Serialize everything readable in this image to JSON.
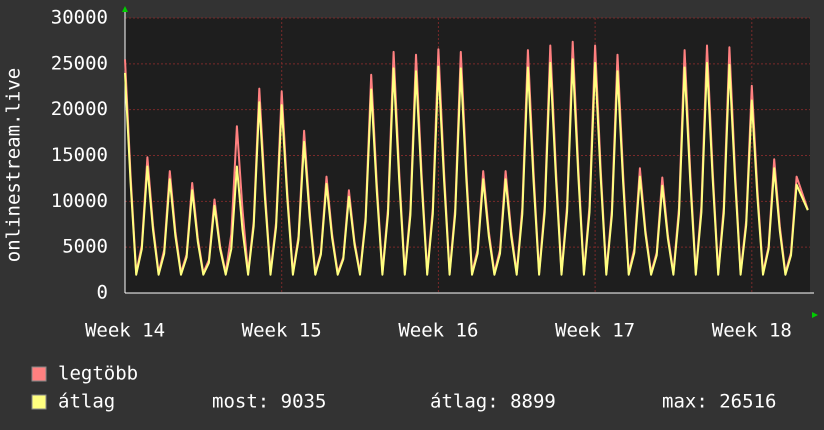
{
  "chart_data": {
    "type": "line",
    "y_label": "onlinestream.live",
    "x": [
      0,
      0.25,
      0.5,
      0.75,
      1,
      1.25,
      1.5,
      1.75,
      2,
      2.25,
      2.5,
      2.75,
      3,
      3.25,
      3.5,
      3.75,
      4,
      4.25,
      4.5,
      4.75,
      5,
      5.25,
      5.5,
      5.75,
      6,
      6.25,
      6.5,
      6.75,
      7,
      7.25,
      7.5,
      7.75,
      8,
      8.25,
      8.5,
      8.75,
      9,
      9.25,
      9.5,
      9.75,
      10,
      10.25,
      10.5,
      10.75,
      11,
      11.25,
      11.5,
      11.75,
      12,
      12.25,
      12.5,
      12.75,
      13,
      13.25,
      13.5,
      13.75,
      14,
      14.25,
      14.5,
      14.75,
      15,
      15.25,
      15.5,
      15.75,
      16,
      16.25,
      16.5,
      16.75,
      17,
      17.25,
      17.5,
      17.75,
      18,
      18.25,
      18.5,
      18.75,
      19,
      19.25,
      19.5,
      19.75,
      20,
      20.25,
      20.5,
      20.75,
      21,
      21.25,
      21.5,
      21.75,
      22,
      22.25,
      22.5,
      22.75,
      23,
      23.25,
      23.5,
      23.75,
      24,
      24.25,
      24.5,
      24.75,
      25,
      25.25,
      25.5,
      25.75,
      26,
      26.25,
      26.5,
      26.75,
      27,
      27.25,
      27.5,
      27.75,
      28,
      28.25,
      28.5,
      28.75,
      29,
      29.25,
      29.5,
      29.75,
      30,
      30.5
    ],
    "xlim": [
      0,
      30.6
    ],
    "xticks": [
      {
        "value": 0,
        "label": "Week 14"
      },
      {
        "value": 7,
        "label": "Week 15"
      },
      {
        "value": 14,
        "label": "Week 16"
      },
      {
        "value": 21,
        "label": "Week 17"
      },
      {
        "value": 28,
        "label": "Week 18"
      }
    ],
    "ylim": [
      0,
      30000
    ],
    "yticks": [
      0,
      5000,
      10000,
      15000,
      20000,
      25000,
      30000
    ],
    "grid": true,
    "series": [
      {
        "name": "legtöbb",
        "color": "#ff8080",
        "values": [
          25500,
          12800,
          2200,
          5200,
          14800,
          7400,
          2200,
          4700,
          13300,
          6700,
          2200,
          4200,
          12000,
          6000,
          2200,
          3600,
          10200,
          5100,
          2200,
          6400,
          18200,
          9100,
          2200,
          7800,
          22300,
          11200,
          2200,
          7700,
          22000,
          11000,
          2200,
          6200,
          17700,
          8900,
          2200,
          4400,
          12700,
          6400,
          2200,
          3900,
          11200,
          5600,
          2200,
          8300,
          23800,
          11900,
          2200,
          9200,
          26300,
          13200,
          2200,
          9100,
          26000,
          13000,
          2200,
          9300,
          26600,
          13300,
          2200,
          9200,
          26300,
          13200,
          2200,
          4700,
          13300,
          6700,
          2200,
          4700,
          13300,
          6700,
          2200,
          9300,
          26500,
          13300,
          2200,
          9500,
          27000,
          13500,
          2200,
          9600,
          27400,
          13700,
          2200,
          9500,
          27000,
          13500,
          2200,
          9100,
          26000,
          13000,
          2200,
          4800,
          13600,
          6800,
          2200,
          4400,
          12600,
          6300,
          2200,
          9300,
          26500,
          13300,
          2200,
          9500,
          27000,
          13500,
          2200,
          9400,
          26800,
          13400,
          2200,
          7900,
          22600,
          11300,
          2200,
          5100,
          14600,
          7300,
          2200,
          4400,
          12700,
          9100
        ]
      },
      {
        "name": "átlag",
        "color": "#ffff80",
        "values": [
          24000,
          12000,
          2000,
          4800,
          13800,
          6900,
          2000,
          4300,
          12400,
          6200,
          2000,
          3900,
          11200,
          5600,
          2000,
          3300,
          9500,
          4800,
          2000,
          4800,
          13800,
          6900,
          2000,
          7300,
          20800,
          10400,
          2000,
          7200,
          20500,
          10300,
          2000,
          5800,
          16500,
          8300,
          2000,
          4200,
          11900,
          6000,
          2000,
          3700,
          10500,
          5300,
          2000,
          7800,
          22200,
          11100,
          2000,
          8600,
          24500,
          12300,
          2000,
          8500,
          24200,
          12100,
          2000,
          8600,
          24700,
          12400,
          2000,
          8600,
          24500,
          12300,
          2000,
          4300,
          12400,
          6200,
          2000,
          4300,
          12400,
          6200,
          2000,
          8600,
          24600,
          12300,
          2000,
          8800,
          25100,
          12600,
          2000,
          8900,
          25500,
          12800,
          2000,
          8800,
          25100,
          12600,
          2000,
          8500,
          24200,
          12100,
          2000,
          4400,
          12700,
          6400,
          2000,
          4100,
          11700,
          5900,
          2000,
          8600,
          24600,
          12300,
          2000,
          8800,
          25100,
          12600,
          2000,
          8700,
          24900,
          12500,
          2000,
          7400,
          21000,
          10500,
          2000,
          4800,
          13600,
          6800,
          2000,
          4100,
          11800,
          9035
        ]
      }
    ],
    "stats": [
      "most: 9035",
      "átlag: 8899",
      "max: 26516"
    ]
  }
}
